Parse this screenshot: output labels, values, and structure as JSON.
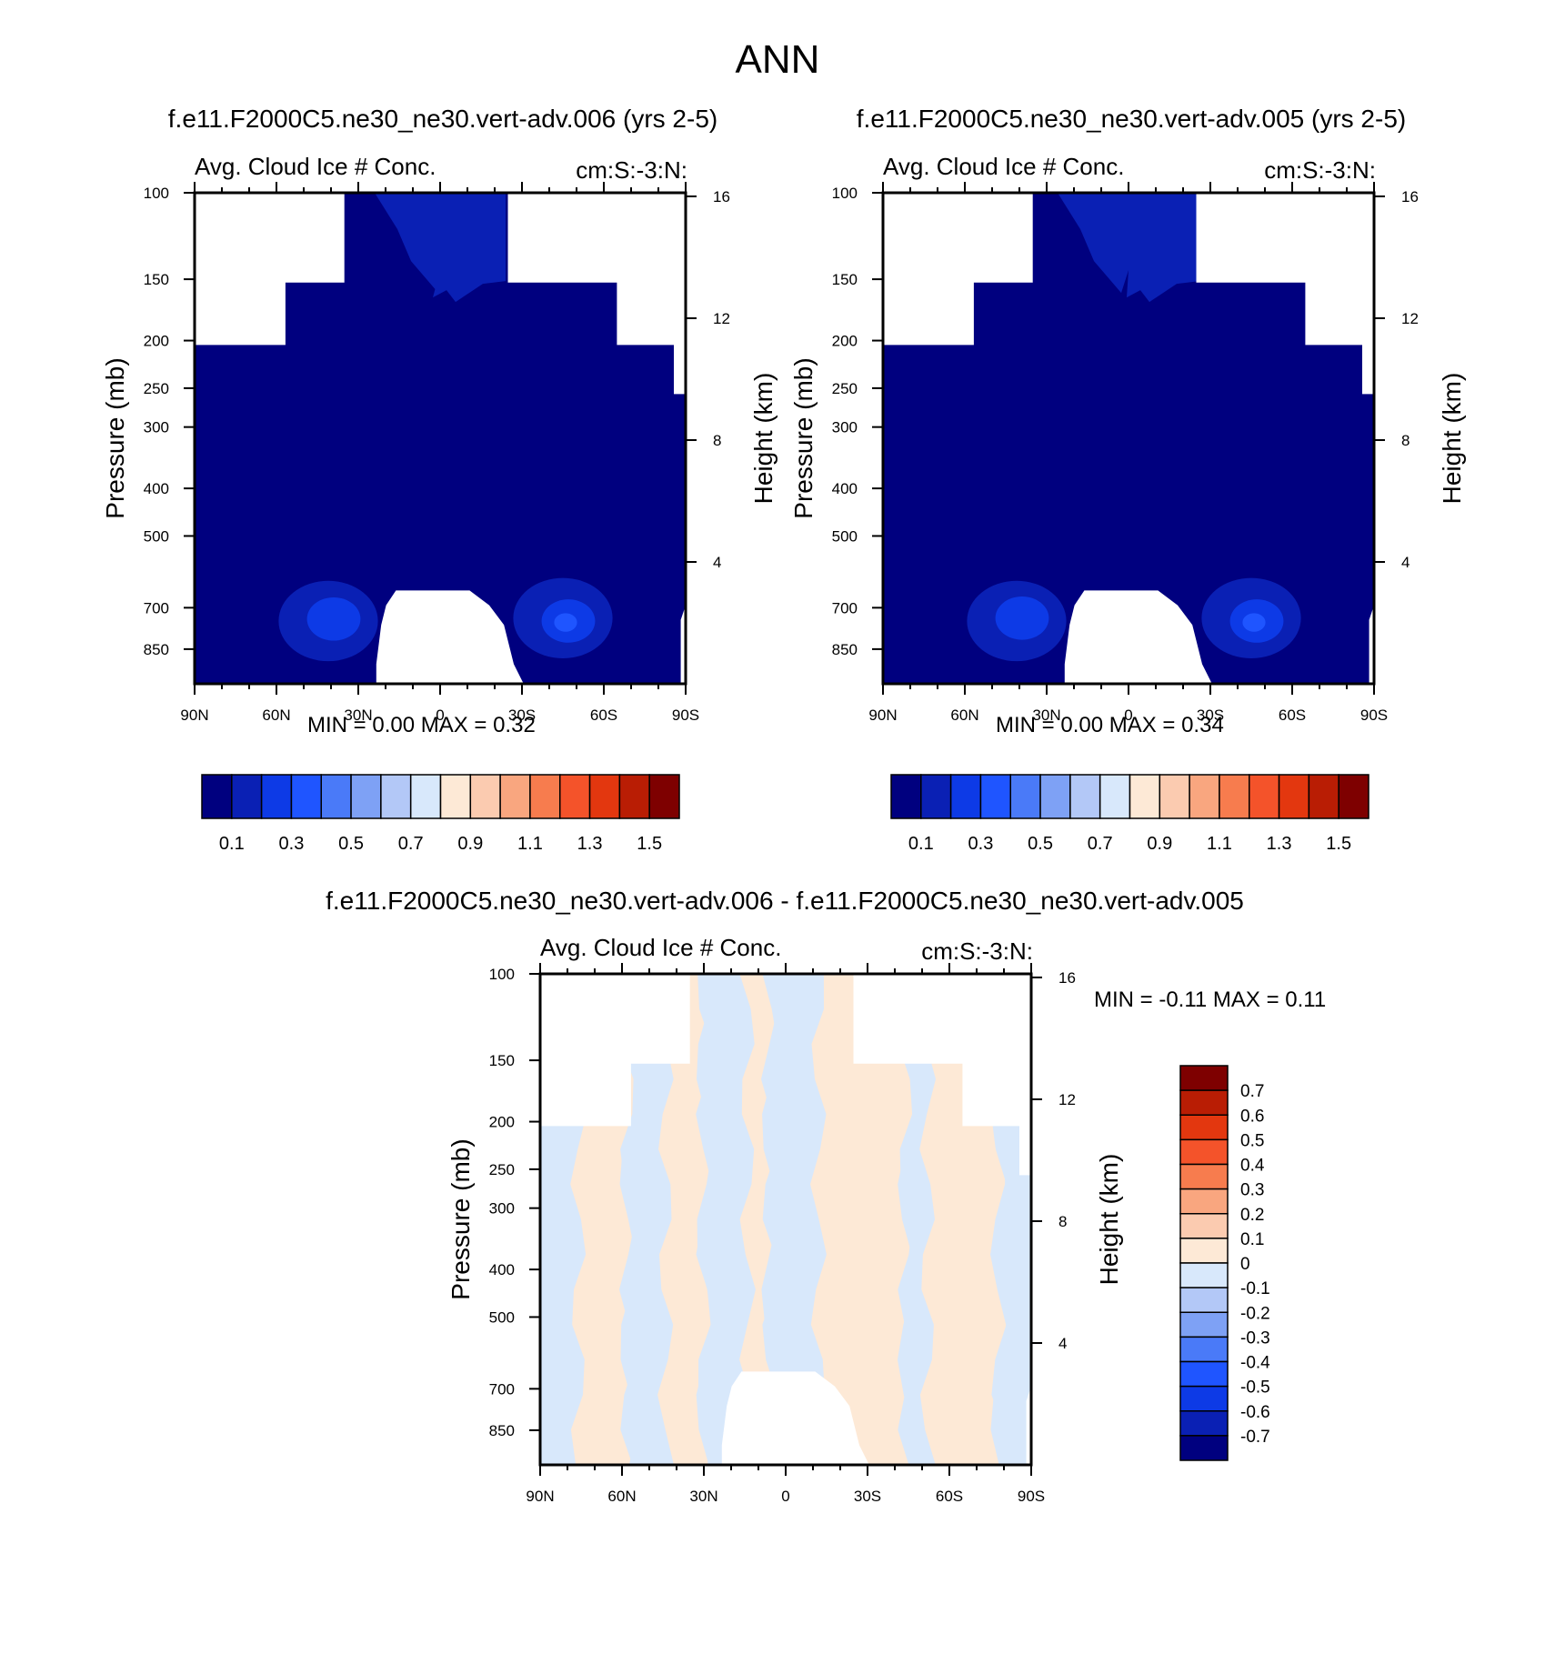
{
  "figure_title": "ANN",
  "cmap_abs": [
    "#00007f",
    "#0a20b4",
    "#0d3ae6",
    "#1f55ff",
    "#4a7af8",
    "#7ea1f5",
    "#b3c8f7",
    "#d8e8fb",
    "#fde9d6",
    "#fbcbb0",
    "#f9a67f",
    "#f77c4e",
    "#f4532a",
    "#e3370f",
    "#b91d04",
    "#7e0000"
  ],
  "cmap_diff": [
    "#00007f",
    "#0a20b4",
    "#0d3ae6",
    "#1f55ff",
    "#4a7af8",
    "#7ea1f5",
    "#b3c8f7",
    "#d8e8fb",
    "#fde9d6",
    "#fbcbb0",
    "#f9a67f",
    "#f77c4e",
    "#f4532a",
    "#e3370f",
    "#b91d04",
    "#7e0000"
  ],
  "chart_data": [
    {
      "type": "heatmap",
      "id": "panel1",
      "title": "f.e11.F2000C5.ne30_ne30.vert-adv.006 (yrs 2-5)",
      "left_label": "Avg. Cloud Ice # Conc.",
      "right_label": "cm:S:-3:N:",
      "xlabel": "",
      "ylabel": "Pressure (mb)",
      "y2label": "Height (km)",
      "x_tick_labels": [
        "90N",
        "60N",
        "30N",
        "0",
        "30S",
        "60S",
        "90S"
      ],
      "x_range": [
        90,
        -90
      ],
      "y_tick_labels": [
        "100",
        "150",
        "200",
        "250",
        "300",
        "400",
        "500",
        "700",
        "850"
      ],
      "y_log": true,
      "y_range": [
        100,
        1000
      ],
      "y2_tick_labels": [
        "16",
        "12",
        "8",
        "4"
      ],
      "stats": {
        "min_label": "MIN =",
        "min": "0.00",
        "max_label": "MAX =",
        "max": "0.32"
      },
      "colorbar_labels": [
        "0.1",
        "0.3",
        "0.5",
        "0.7",
        "0.9",
        "1.1",
        "1.3",
        "1.5"
      ],
      "blobs": [
        {
          "lat": 41,
          "p": 745,
          "level": 1
        },
        {
          "lat": 39,
          "p": 738,
          "level": 2
        },
        {
          "lat": -45,
          "p": 735,
          "level": 1
        },
        {
          "lat": -47,
          "p": 745,
          "level": 2
        },
        {
          "lat": -46,
          "p": 750,
          "level": 3
        }
      ],
      "upper_blob": {
        "lat_from": 24,
        "lat_to": -24,
        "level": 1
      }
    },
    {
      "type": "heatmap",
      "id": "panel2",
      "title": "f.e11.F2000C5.ne30_ne30.vert-adv.005 (yrs 2-5)",
      "left_label": "Avg. Cloud Ice # Conc.",
      "right_label": "cm:S:-3:N:",
      "xlabel": "",
      "ylabel": "Pressure (mb)",
      "y2label": "Height (km)",
      "x_tick_labels": [
        "90N",
        "60N",
        "30N",
        "0",
        "30S",
        "60S",
        "90S"
      ],
      "x_range": [
        90,
        -90
      ],
      "y_tick_labels": [
        "100",
        "150",
        "200",
        "250",
        "300",
        "400",
        "500",
        "700",
        "850"
      ],
      "y_log": true,
      "y_range": [
        100,
        1000
      ],
      "y2_tick_labels": [
        "16",
        "12",
        "8",
        "4"
      ],
      "stats": {
        "min_label": "MIN =",
        "min": "0.00",
        "max_label": "MAX =",
        "max": "0.34"
      },
      "colorbar_labels": [
        "0.1",
        "0.3",
        "0.5",
        "0.7",
        "0.9",
        "1.1",
        "1.3",
        "1.5"
      ],
      "blobs": [
        {
          "lat": 41,
          "p": 745,
          "level": 1
        },
        {
          "lat": 39,
          "p": 735,
          "level": 2
        },
        {
          "lat": -45,
          "p": 735,
          "level": 1
        },
        {
          "lat": -47,
          "p": 745,
          "level": 2
        },
        {
          "lat": -46,
          "p": 750,
          "level": 3
        }
      ],
      "upper_blob": {
        "lat_from": 26,
        "lat_to": -26,
        "level": 1
      }
    },
    {
      "type": "heatmap",
      "id": "panel3",
      "title": "f.e11.F2000C5.ne30_ne30.vert-adv.006 - f.e11.F2000C5.ne30_ne30.vert-adv.005",
      "left_label": "Avg. Cloud Ice # Conc.",
      "right_label": "cm:S:-3:N:",
      "xlabel": "",
      "ylabel": "Pressure (mb)",
      "y2label": "Height (km)",
      "x_tick_labels": [
        "90N",
        "60N",
        "30N",
        "0",
        "30S",
        "60S",
        "90S"
      ],
      "x_range": [
        90,
        -90
      ],
      "y_tick_labels": [
        "100",
        "150",
        "200",
        "250",
        "300",
        "400",
        "500",
        "700",
        "850"
      ],
      "y_log": true,
      "y_range": [
        100,
        1000
      ],
      "y2_tick_labels": [
        "16",
        "12",
        "8",
        "4"
      ],
      "stats": {
        "min_label": "MIN =",
        "min": "-0.11",
        "max_label": "MAX =",
        "max": "0.11"
      },
      "colorbar_labels": [
        "0.7",
        "0.6",
        "0.5",
        "0.4",
        "0.3",
        "0.2",
        "0.1",
        "0",
        "-0.1",
        "-0.2",
        "-0.3",
        "-0.4",
        "-0.5",
        "-0.6",
        "-0.7"
      ],
      "stripes": [
        {
          "lat_from": 90,
          "lat_to": 76,
          "sign": "neg"
        },
        {
          "lat_from": 76,
          "lat_to": 58,
          "sign": "pos"
        },
        {
          "lat_from": 58,
          "lat_to": 44,
          "sign": "neg"
        },
        {
          "lat_from": 44,
          "lat_to": 30,
          "sign": "pos"
        },
        {
          "lat_from": 30,
          "lat_to": 14,
          "sign": "neg"
        },
        {
          "lat_from": 14,
          "lat_to": 6,
          "sign": "pos"
        },
        {
          "lat_from": 6,
          "lat_to": -12,
          "sign": "neg"
        },
        {
          "lat_from": -12,
          "lat_to": -44,
          "sign": "pos"
        },
        {
          "lat_from": -44,
          "lat_to": -52,
          "sign": "neg"
        },
        {
          "lat_from": -52,
          "lat_to": -78,
          "sign": "pos"
        },
        {
          "lat_from": -78,
          "lat_to": -90,
          "sign": "neg"
        }
      ]
    }
  ]
}
